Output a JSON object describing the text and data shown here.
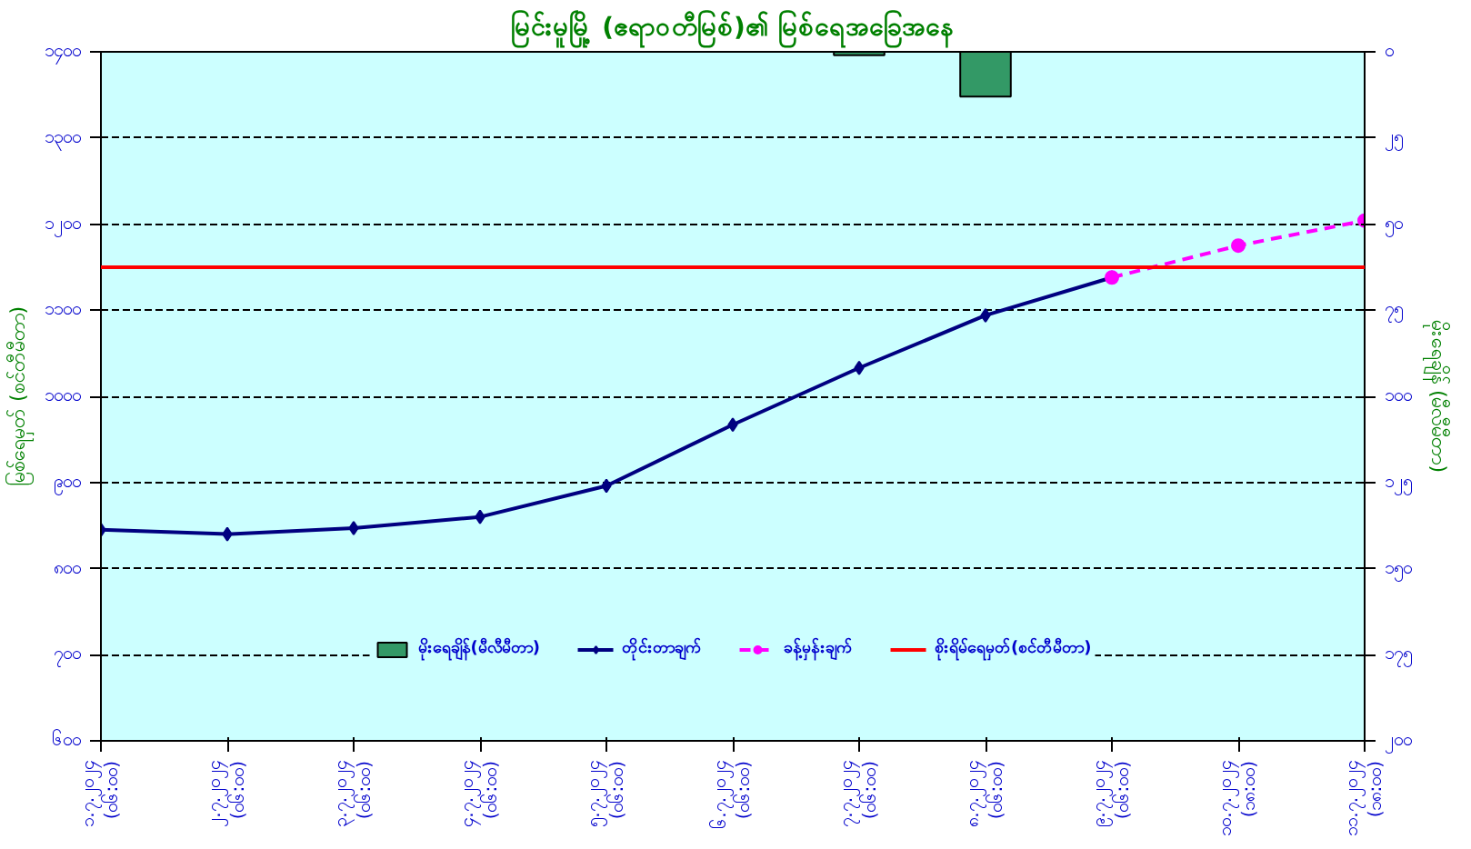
{
  "chart_data": {
    "type": "line",
    "title": "မြင်းမူမြို့ (ဧရာဝတီမြစ်)၏ မြစ်ရေအခြေအနေ",
    "ylabel": "မြစ်ရေမှတ် (စင်တီမီတာ)",
    "y2label": "မိုးရေချိန် (မီလီမီတာ)",
    "categories": [
      "၁.၇.၂၀၂၄\n(၀၆:၀၀)",
      "၂.၇.၂၀၂၄\n(၀၆:၀၀)",
      "၃.၇.၂၀၂၄\n(၀၆:၀၀)",
      "၄.၇.၂၀၂၄\n(၀၆:၀၀)",
      "၅.၇.၂၀၂၄\n(၀၆:၀၀)",
      "၆.၇.၂၀၂၄\n(၀၆:၀၀)",
      "၇.၇.၂၀၂၄\n(၀၆:၀၀)",
      "၈.၇.၂၀၂၄\n(၀၆:၀၀)",
      "၉.၇.၂၀၂၄\n(၀၆:၀၀)",
      "၁၀.၇.၂၀၂၄\n(၁၈:၀၀)",
      "၁၁.၇.၂၀၂၄\n(၁၈:၀၀)"
    ],
    "series": [
      {
        "name": "မိုးရေချိန်(မီလီမီတာ)",
        "type": "bar",
        "axis": "y2",
        "color": "#339966",
        "values": [
          null,
          null,
          null,
          null,
          null,
          null,
          1,
          13,
          null,
          null,
          null
        ]
      },
      {
        "name": "တိုင်းတာချက်",
        "color": "#000080",
        "marker": "diamond",
        "line_style": "solid",
        "values": [
          845,
          840,
          847,
          860,
          896,
          967,
          1033,
          1094,
          1138,
          null,
          null
        ]
      },
      {
        "name": "ခန့်မှန်းချက်",
        "color": "#ff00ff",
        "marker": "circle",
        "line_style": "dashed",
        "values": [
          null,
          null,
          null,
          null,
          null,
          null,
          null,
          null,
          1138,
          1175,
          1204
        ]
      }
    ],
    "ref_lines": [
      {
        "axis": "y",
        "value": 1150,
        "label": "စိုးရိမ်ရေမှတ်(စင်တီမီတာ)",
        "color": "#ff0000"
      }
    ],
    "ylim": [
      600,
      1400
    ],
    "yticks": [
      {
        "value": 600,
        "label": "၆၀၀"
      },
      {
        "value": 700,
        "label": "၇၀၀"
      },
      {
        "value": 800,
        "label": "၈၀၀"
      },
      {
        "value": 900,
        "label": "၉၀၀"
      },
      {
        "value": 1000,
        "label": "၁၀၀၀"
      },
      {
        "value": 1100,
        "label": "၁၁၀၀"
      },
      {
        "value": 1200,
        "label": "၁၂၀၀"
      },
      {
        "value": 1300,
        "label": "၁၃၀၀"
      },
      {
        "value": 1400,
        "label": "၁၄၀၀"
      }
    ],
    "y2lim": [
      200,
      0
    ],
    "y2ticks": [
      {
        "value": 0,
        "label": "၀"
      },
      {
        "value": 25,
        "label": "၂၅"
      },
      {
        "value": 50,
        "label": "၅၀"
      },
      {
        "value": 75,
        "label": "၇၅"
      },
      {
        "value": 100,
        "label": "၁၀၀"
      },
      {
        "value": 125,
        "label": "၁၂၅"
      },
      {
        "value": 150,
        "label": "၁၅၀"
      },
      {
        "value": 175,
        "label": "၁၇၅"
      },
      {
        "value": 200,
        "label": "၂၀၀"
      }
    ],
    "grid": "y",
    "legend": "bottom"
  }
}
